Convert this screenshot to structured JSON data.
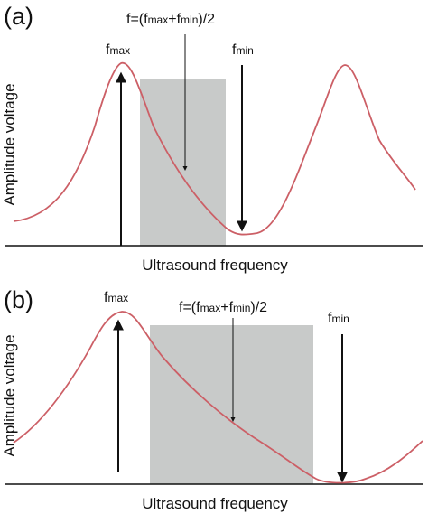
{
  "panels": [
    {
      "id": "a",
      "label": "(a)",
      "xlabel": "Ultrasound frequency",
      "ylabel": "Amplitude voltage",
      "fmax_label": {
        "base": "f",
        "sub": "max"
      },
      "fmin_label": {
        "base": "f",
        "sub": "min"
      },
      "formula_label": {
        "prefix": "f=(f",
        "sub1": "max",
        "mid": "+f",
        "sub2": "min",
        "suffix": ")/2"
      }
    },
    {
      "id": "b",
      "label": "(b)",
      "xlabel": "Ultrasound frequency",
      "ylabel": "Amplitude voltage",
      "fmax_label": {
        "base": "f",
        "sub": "max"
      },
      "fmin_label": {
        "base": "f",
        "sub": "min"
      },
      "formula_label": {
        "prefix": "f=(f",
        "sub1": "max",
        "mid": "+f",
        "sub2": "min",
        "suffix": ")/2"
      }
    }
  ],
  "colors": {
    "curve": "#cc5f66",
    "shade": "#c8cac9",
    "arrow": "#111111",
    "axis": "#111111"
  }
}
